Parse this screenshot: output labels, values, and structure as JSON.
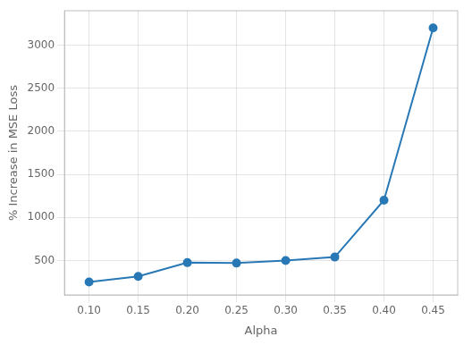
{
  "chart_data": {
    "type": "line",
    "x": [
      0.1,
      0.15,
      0.2,
      0.25,
      0.3,
      0.35,
      0.4,
      0.45
    ],
    "values": [
      250,
      315,
      475,
      470,
      500,
      540,
      1200,
      3200
    ],
    "xlabel": "Alpha",
    "ylabel": "% Increase in MSE Loss",
    "color": "#2878b5",
    "marker": "circle",
    "xlim": [
      0.075,
      0.475
    ],
    "ylim": [
      100,
      3400
    ],
    "xticks": [
      {
        "value": 0.1,
        "label": "0.10"
      },
      {
        "value": 0.15,
        "label": "0.15"
      },
      {
        "value": 0.2,
        "label": "0.20"
      },
      {
        "value": 0.25,
        "label": "0.25"
      },
      {
        "value": 0.3,
        "label": "0.30"
      },
      {
        "value": 0.35,
        "label": "0.35"
      },
      {
        "value": 0.4,
        "label": "0.40"
      },
      {
        "value": 0.45,
        "label": "0.45"
      }
    ],
    "yticks": [
      500,
      1000,
      1500,
      2000,
      2500,
      3000
    ],
    "grid": true
  }
}
